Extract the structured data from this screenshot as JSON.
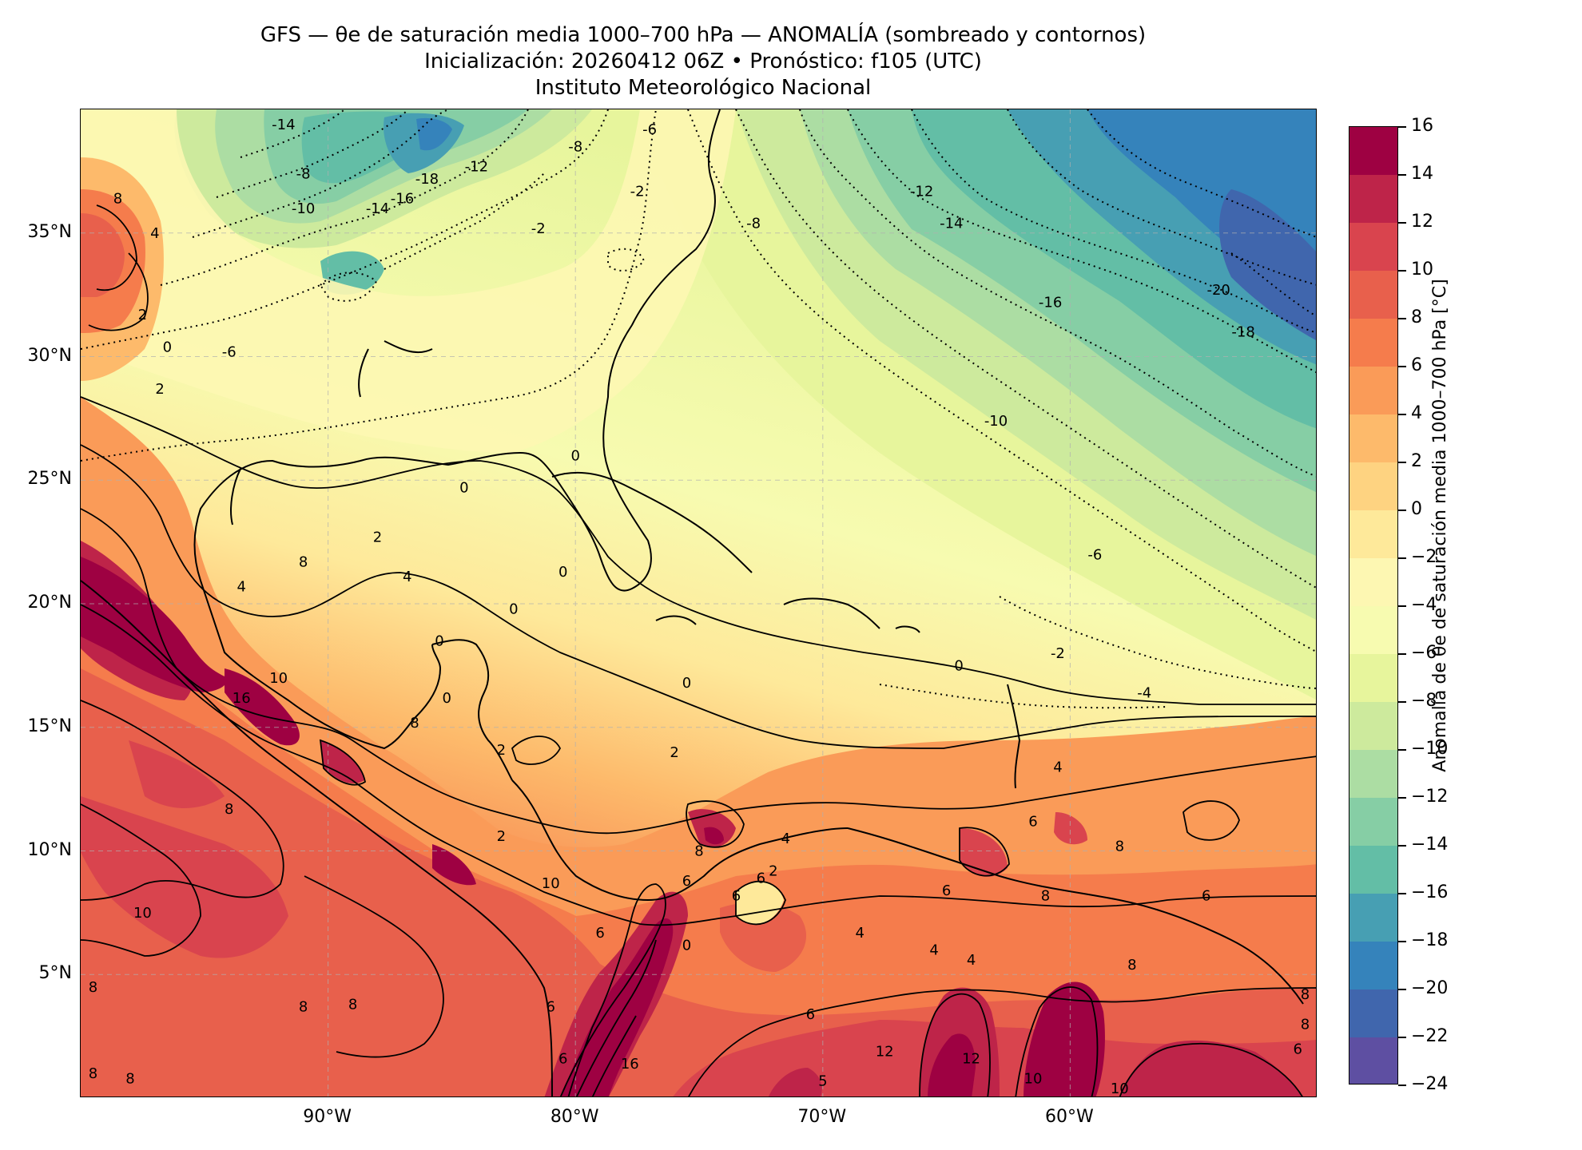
{
  "title": {
    "line1": "GFS — θe de saturación media 1000–700 hPa — ANOMALÍA (sombreado y contornos)",
    "line2": "Inicialización: 20260412 06Z   •   Pronóstico: f105 (UTC)",
    "line3": "Instituto Meteorológico Nacional"
  },
  "lat_labels": [
    {
      "text": "35°N",
      "lat": 35
    },
    {
      "text": "30°N",
      "lat": 30
    },
    {
      "text": "25°N",
      "lat": 25
    },
    {
      "text": "20°N",
      "lat": 20
    },
    {
      "text": "15°N",
      "lat": 15
    },
    {
      "text": "10°N",
      "lat": 10
    },
    {
      "text": "5°N",
      "lat": 5
    }
  ],
  "lon_labels": [
    {
      "text": "90°W",
      "lon": -90
    },
    {
      "text": "80°W",
      "lon": -80
    },
    {
      "text": "70°W",
      "lon": -70
    },
    {
      "text": "60°W",
      "lon": -60
    }
  ],
  "extent": {
    "lon_min": -100,
    "lon_max": -50,
    "lat_min": 0,
    "lat_max": 40
  },
  "colorbar": {
    "label": "Anomalía de θe de saturación media 1000–700 hPa [°C]",
    "levels": [
      16,
      14,
      12,
      10,
      8,
      6,
      4,
      2,
      0,
      -2,
      -4,
      -6,
      -8,
      -10,
      -12,
      -14,
      -16,
      -18,
      -20,
      -22,
      -24
    ],
    "level_labels": [
      "16",
      "14",
      "12",
      "10",
      "8",
      "6",
      "4",
      "2",
      "0",
      "−2",
      "−4",
      "−6",
      "−8",
      "−10",
      "−12",
      "−14",
      "−16",
      "−18",
      "−20",
      "−22",
      "−24"
    ],
    "colors": [
      "#9e0142",
      "#be2449",
      "#d9444e",
      "#e8604c",
      "#f57c4c",
      "#fa9b58",
      "#fdba6b",
      "#fed381",
      "#fee99a",
      "#fdf7b2",
      "#f7fbb0",
      "#e7f59c",
      "#cdea9d",
      "#acdda3",
      "#86cea5",
      "#63bea6",
      "#479fb3",
      "#3583bb",
      "#4066ad",
      "#5e4fa2"
    ]
  },
  "contour_labels": [
    {
      "text": "-14",
      "lon": -91.8,
      "lat": 39.2
    },
    {
      "text": "-8",
      "lon": -91.0,
      "lat": 37.2
    },
    {
      "text": "-10",
      "lon": -91.0,
      "lat": 35.8
    },
    {
      "text": "-14",
      "lon": -88.0,
      "lat": 35.8
    },
    {
      "text": "-16",
      "lon": -87.0,
      "lat": 36.2
    },
    {
      "text": "-18",
      "lon": -86.0,
      "lat": 37.0
    },
    {
      "text": "-12",
      "lon": -84.0,
      "lat": 37.5
    },
    {
      "text": "-8",
      "lon": -80.0,
      "lat": 38.3
    },
    {
      "text": "-6",
      "lon": -77.0,
      "lat": 39.0
    },
    {
      "text": "-2",
      "lon": -77.5,
      "lat": 36.5
    },
    {
      "text": "-2",
      "lon": -81.5,
      "lat": 35.0
    },
    {
      "text": "-8",
      "lon": -72.8,
      "lat": 35.2
    },
    {
      "text": "-12",
      "lon": -66.0,
      "lat": 36.5
    },
    {
      "text": "-14",
      "lon": -64.8,
      "lat": 35.2
    },
    {
      "text": "-16",
      "lon": -60.8,
      "lat": 32.0
    },
    {
      "text": "-20",
      "lon": -54.0,
      "lat": 32.5
    },
    {
      "text": "-18",
      "lon": -53.0,
      "lat": 30.8
    },
    {
      "text": "-10",
      "lon": -63.0,
      "lat": 27.2
    },
    {
      "text": "-6",
      "lon": -59.0,
      "lat": 21.8
    },
    {
      "text": "-2",
      "lon": -60.5,
      "lat": 17.8
    },
    {
      "text": "-4",
      "lon": -57.0,
      "lat": 16.2
    },
    {
      "text": "0",
      "lon": -64.5,
      "lat": 17.3
    },
    {
      "text": "0",
      "lon": -80.0,
      "lat": 25.8
    },
    {
      "text": "0",
      "lon": -84.5,
      "lat": 24.5
    },
    {
      "text": "-6",
      "lon": -94.0,
      "lat": 30.0
    },
    {
      "text": "0",
      "lon": -96.5,
      "lat": 30.2
    },
    {
      "text": "2",
      "lon": -97.5,
      "lat": 31.5
    },
    {
      "text": "2",
      "lon": -96.8,
      "lat": 28.5
    },
    {
      "text": "4",
      "lon": -97.0,
      "lat": 34.8
    },
    {
      "text": "8",
      "lon": -98.5,
      "lat": 36.2
    },
    {
      "text": "2",
      "lon": -88.0,
      "lat": 22.5
    },
    {
      "text": "4",
      "lon": -86.8,
      "lat": 20.9
    },
    {
      "text": "8",
      "lon": -91.0,
      "lat": 21.5
    },
    {
      "text": "4",
      "lon": -93.5,
      "lat": 20.5
    },
    {
      "text": "0",
      "lon": -80.5,
      "lat": 21.1
    },
    {
      "text": "0",
      "lon": -82.5,
      "lat": 19.6
    },
    {
      "text": "0",
      "lon": -85.5,
      "lat": 18.3
    },
    {
      "text": "0",
      "lon": -85.2,
      "lat": 16.0
    },
    {
      "text": "0",
      "lon": -75.5,
      "lat": 16.6
    },
    {
      "text": "2",
      "lon": -76.0,
      "lat": 13.8
    },
    {
      "text": "2",
      "lon": -83.0,
      "lat": 13.9
    },
    {
      "text": "2",
      "lon": -83.0,
      "lat": 10.4
    },
    {
      "text": "8",
      "lon": -86.5,
      "lat": 15.0
    },
    {
      "text": "16",
      "lon": -93.5,
      "lat": 16.0
    },
    {
      "text": "10",
      "lon": -92.0,
      "lat": 16.8
    },
    {
      "text": "8",
      "lon": -94.0,
      "lat": 11.5
    },
    {
      "text": "10",
      "lon": -97.5,
      "lat": 7.3
    },
    {
      "text": "8",
      "lon": -99.5,
      "lat": 4.3
    },
    {
      "text": "8",
      "lon": -91.0,
      "lat": 3.5
    },
    {
      "text": "8",
      "lon": -89.0,
      "lat": 3.6
    },
    {
      "text": "8",
      "lon": -99.5,
      "lat": 0.8
    },
    {
      "text": "8",
      "lon": -98.0,
      "lat": 0.6
    },
    {
      "text": "6",
      "lon": -81.0,
      "lat": 3.5
    },
    {
      "text": "6",
      "lon": -79.0,
      "lat": 6.5
    },
    {
      "text": "6",
      "lon": -80.5,
      "lat": 1.4
    },
    {
      "text": "10",
      "lon": -81.0,
      "lat": 8.5
    },
    {
      "text": "6",
      "lon": -75.5,
      "lat": 8.6
    },
    {
      "text": "8",
      "lon": -75.0,
      "lat": 9.8
    },
    {
      "text": "2",
      "lon": -72.0,
      "lat": 9.0
    },
    {
      "text": "4",
      "lon": -71.5,
      "lat": 10.3
    },
    {
      "text": "4",
      "lon": -68.5,
      "lat": 6.5
    },
    {
      "text": "6",
      "lon": -70.5,
      "lat": 3.2
    },
    {
      "text": "4",
      "lon": -65.5,
      "lat": 5.8
    },
    {
      "text": "4",
      "lon": -64.0,
      "lat": 5.4
    },
    {
      "text": "6",
      "lon": -65.0,
      "lat": 8.2
    },
    {
      "text": "8",
      "lon": -61.0,
      "lat": 8.0
    },
    {
      "text": "8",
      "lon": -58.0,
      "lat": 10.0
    },
    {
      "text": "6",
      "lon": -54.5,
      "lat": 8.0
    },
    {
      "text": "6",
      "lon": -61.5,
      "lat": 11.0
    },
    {
      "text": "4",
      "lon": -60.5,
      "lat": 13.2
    },
    {
      "text": "8",
      "lon": -57.5,
      "lat": 5.2
    },
    {
      "text": "12",
      "lon": -67.5,
      "lat": 1.7
    },
    {
      "text": "12",
      "lon": -64.0,
      "lat": 1.4
    },
    {
      "text": "10",
      "lon": -61.5,
      "lat": 0.6
    },
    {
      "text": "10",
      "lon": -58.0,
      "lat": 0.2
    },
    {
      "text": "8",
      "lon": -50.5,
      "lat": 4.0
    },
    {
      "text": "8",
      "lon": -50.5,
      "lat": 2.8
    },
    {
      "text": "6",
      "lon": -50.8,
      "lat": 1.8
    },
    {
      "text": "16",
      "lon": -77.8,
      "lat": 1.2
    },
    {
      "text": "0",
      "lon": -75.5,
      "lat": 6.0
    },
    {
      "text": "6",
      "lon": -73.5,
      "lat": 8.0
    },
    {
      "text": "6",
      "lon": -72.5,
      "lat": 8.7
    },
    {
      "text": "5",
      "lon": -70.0,
      "lat": 0.5
    }
  ]
}
